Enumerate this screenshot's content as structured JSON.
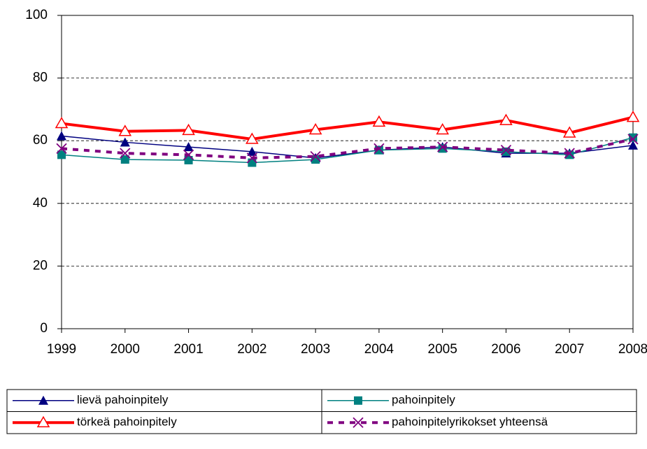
{
  "chart_data": {
    "type": "line",
    "x": [
      1999,
      2000,
      2001,
      2002,
      2003,
      2004,
      2005,
      2006,
      2007,
      2008
    ],
    "xlim": [
      1999,
      2008
    ],
    "xticks": [
      1999,
      2000,
      2001,
      2002,
      2003,
      2004,
      2005,
      2006,
      2007,
      2008
    ],
    "ylim": [
      0,
      100
    ],
    "yticks": [
      0,
      20,
      40,
      60,
      80,
      100
    ],
    "grid": true,
    "legend": "bottom",
    "series": [
      {
        "name": "lievä pahoinpitely",
        "color": "#000080",
        "marker": "triangle",
        "width": 1.5,
        "dash": false,
        "values": [
          61.5,
          59.5,
          58,
          56.5,
          54.5,
          57,
          58,
          56,
          56,
          58.5
        ]
      },
      {
        "name": "pahoinpitely",
        "color": "#008080",
        "marker": "square",
        "width": 1.5,
        "dash": false,
        "values": [
          55.5,
          54,
          53.8,
          53,
          54,
          57,
          57.5,
          56.5,
          55.5,
          61
        ]
      },
      {
        "name": "törkeä pahoinpitely",
        "color": "#ff0000",
        "marker": "open-triangle",
        "width": 4,
        "dash": false,
        "values": [
          65.5,
          63,
          63.3,
          60.5,
          63.5,
          66,
          63.5,
          66.5,
          62.5,
          67.5
        ]
      },
      {
        "name": "pahoinpitelyrikokset yhteensä",
        "color": "#800080",
        "marker": "x",
        "width": 4,
        "dash": true,
        "values": [
          57.5,
          56,
          55.5,
          54.5,
          55,
          57.5,
          58,
          57,
          56,
          60.5
        ]
      }
    ]
  }
}
